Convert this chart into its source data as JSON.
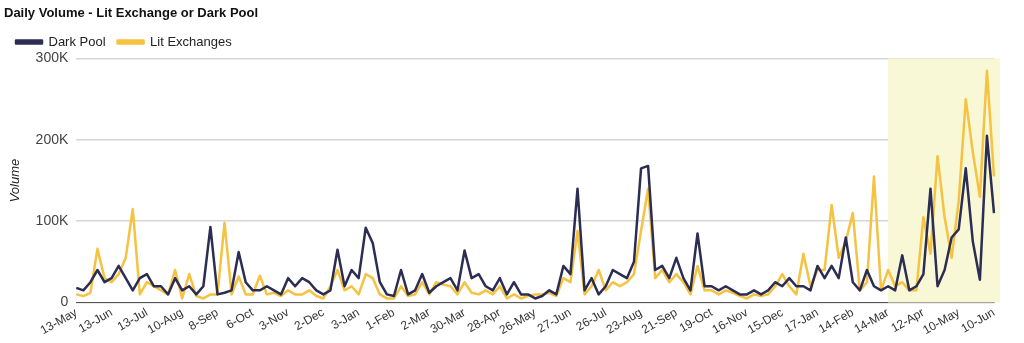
{
  "chart_data": {
    "type": "line",
    "title": "Daily Volume - Lit Exchange or Dark Pool",
    "ylabel": "Volume",
    "categories": [
      "13-May",
      null,
      null,
      null,
      null,
      "13-Jun",
      null,
      null,
      null,
      null,
      "13-Jul",
      null,
      null,
      null,
      null,
      "10-Aug",
      null,
      null,
      null,
      null,
      "8-Sep",
      null,
      null,
      null,
      null,
      "6-Oct",
      null,
      null,
      null,
      null,
      "3-Nov",
      null,
      null,
      null,
      null,
      "2-Dec",
      null,
      null,
      null,
      null,
      "3-Jan",
      null,
      null,
      null,
      null,
      "1-Feb",
      null,
      null,
      null,
      null,
      "2-Mar",
      null,
      null,
      null,
      null,
      "30-Mar",
      null,
      null,
      null,
      null,
      "28-Apr",
      null,
      null,
      null,
      null,
      "26-May",
      null,
      null,
      null,
      null,
      "27-Jun",
      null,
      null,
      null,
      null,
      "26-Jul",
      null,
      null,
      null,
      null,
      "23-Aug",
      null,
      null,
      null,
      null,
      "21-Sep",
      null,
      null,
      null,
      null,
      "19-Oct",
      null,
      null,
      null,
      null,
      "16-Nov",
      null,
      null,
      null,
      null,
      "15-Dec",
      null,
      null,
      null,
      null,
      "17-Jan",
      null,
      null,
      null,
      null,
      "14-Feb",
      null,
      null,
      null,
      null,
      "14-Mar",
      null,
      null,
      null,
      null,
      "12-Apr",
      null,
      null,
      null,
      null,
      "10-May",
      null,
      null,
      null,
      null,
      "10-Jun"
    ],
    "series": [
      {
        "name": "Dark Pool",
        "color": "#2b2d52",
        "values": [
          18000,
          15000,
          25000,
          40000,
          25000,
          30000,
          45000,
          30000,
          15000,
          30000,
          35000,
          20000,
          20000,
          10000,
          30000,
          15000,
          20000,
          10000,
          20000,
          93000,
          10000,
          12000,
          15000,
          62000,
          25000,
          15000,
          15000,
          20000,
          15000,
          10000,
          30000,
          20000,
          30000,
          25000,
          15000,
          10000,
          15000,
          65000,
          20000,
          40000,
          30000,
          92000,
          73000,
          25000,
          10000,
          8000,
          40000,
          10000,
          15000,
          35000,
          12000,
          20000,
          25000,
          30000,
          15000,
          64000,
          30000,
          35000,
          20000,
          15000,
          30000,
          10000,
          25000,
          10000,
          10000,
          5000,
          8000,
          15000,
          10000,
          45000,
          35000,
          140000,
          15000,
          30000,
          10000,
          20000,
          40000,
          35000,
          30000,
          50000,
          165000,
          168000,
          40000,
          45000,
          30000,
          55000,
          30000,
          15000,
          85000,
          20000,
          20000,
          15000,
          20000,
          15000,
          10000,
          10000,
          15000,
          10000,
          15000,
          25000,
          20000,
          30000,
          20000,
          20000,
          15000,
          45000,
          30000,
          45000,
          30000,
          80000,
          25000,
          15000,
          40000,
          20000,
          15000,
          20000,
          15000,
          58000,
          15000,
          20000,
          35000,
          140000,
          20000,
          40000,
          80000,
          90000,
          165000,
          75000,
          28000,
          205000,
          110000
        ]
      },
      {
        "name": "Lit Exchanges",
        "color": "#f5c242",
        "values": [
          10000,
          8000,
          12000,
          66000,
          30000,
          25000,
          35000,
          55000,
          115000,
          10000,
          25000,
          20000,
          15000,
          10000,
          40000,
          5000,
          35000,
          8000,
          5000,
          10000,
          10000,
          98000,
          10000,
          32000,
          10000,
          10000,
          33000,
          10000,
          12000,
          8000,
          15000,
          10000,
          10000,
          15000,
          8000,
          5000,
          20000,
          40000,
          15000,
          20000,
          10000,
          35000,
          30000,
          10000,
          5000,
          5000,
          20000,
          8000,
          10000,
          25000,
          10000,
          25000,
          22000,
          20000,
          10000,
          25000,
          12000,
          10000,
          15000,
          10000,
          20000,
          5000,
          10000,
          5000,
          8000,
          10000,
          10000,
          12000,
          8000,
          30000,
          25000,
          88000,
          10000,
          20000,
          40000,
          15000,
          25000,
          20000,
          25000,
          35000,
          88000,
          140000,
          30000,
          40000,
          25000,
          35000,
          25000,
          10000,
          45000,
          15000,
          15000,
          10000,
          15000,
          12000,
          8000,
          5000,
          10000,
          8000,
          10000,
          20000,
          35000,
          20000,
          10000,
          60000,
          20000,
          40000,
          40000,
          120000,
          55000,
          75000,
          110000,
          15000,
          25000,
          155000,
          15000,
          40000,
          20000,
          25000,
          15000,
          15000,
          105000,
          60000,
          180000,
          105000,
          55000,
          125000,
          250000,
          185000,
          130000,
          285000,
          155000
        ]
      }
    ],
    "ylim": [
      0,
      300000
    ],
    "yticks": [
      0,
      {
        "value": 100000,
        "label": "100K"
      },
      {
        "value": 200000,
        "label": "200K"
      },
      {
        "value": 300000,
        "label": "300K"
      }
    ],
    "grid": "y",
    "legend": "top left",
    "marker": "none",
    "line_style": "solid",
    "bands": [
      {
        "axis": "x",
        "from": "14-Mar",
        "to": "10-Jun",
        "color": "#f8f7d6"
      }
    ]
  }
}
